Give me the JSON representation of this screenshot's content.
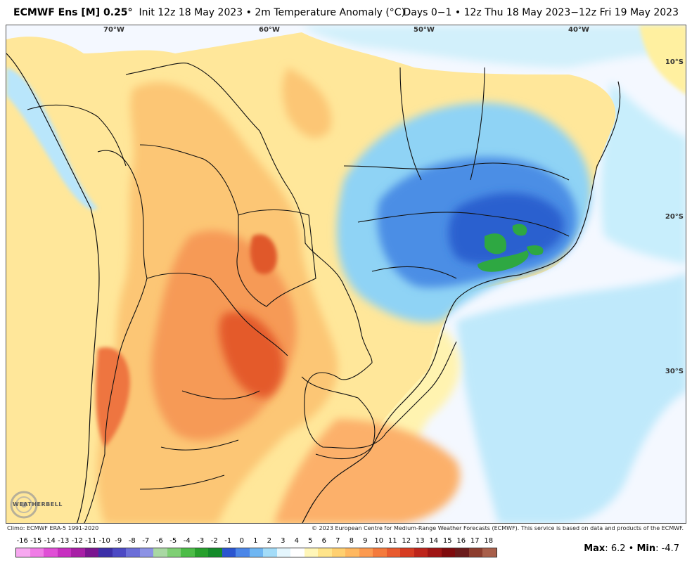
{
  "header": {
    "model": "ECMWF Ens [M] 0.25",
    "degree": "°",
    "init": "Init 12z 18 May 2023",
    "bullet": "•",
    "field": "2m Temperature Anomaly (°C)",
    "valid": "Days 0−1 • 12z Thu 18 May 2023−12z Fri 19 May 2023"
  },
  "map": {
    "lon_labels": [
      "70°W",
      "60°W",
      "50°W",
      "40°W"
    ],
    "lat_labels": [
      "10°S",
      "20°S",
      "30°S"
    ],
    "ocean_color": "#f4f8ff",
    "land_warm_colors": [
      "#fff2a8",
      "#ffd277",
      "#fbb064",
      "#f28a4e",
      "#e5582e",
      "#c93c1f"
    ],
    "cold_colors": [
      "#e8f4ff",
      "#b9e6fb",
      "#8fd3f5",
      "#5ab4ee",
      "#3c8ae0",
      "#2460d0",
      "#2ea842"
    ]
  },
  "logo": {
    "text": "WEATHERBELL"
  },
  "footer": {
    "climo": "Climo: ECMWF ERA-5 1991-2020",
    "copyright": "© 2023 European Centre for Medium-Range Weather Forecasts (ECMWF). This service is based on data and products of the ECMWF."
  },
  "colorbar": {
    "labels": [
      "-16",
      "-15",
      "-14",
      "-13",
      "-12",
      "-11",
      "-10",
      "-9",
      "-8",
      "-7",
      "-6",
      "-5",
      "-4",
      "-3",
      "-2",
      "-1",
      "0",
      "1",
      "2",
      "3",
      "4",
      "5",
      "6",
      "7",
      "8",
      "9",
      "10",
      "11",
      "12",
      "13",
      "14",
      "15",
      "16",
      "17",
      "18"
    ],
    "colors": [
      "#f7a8f0",
      "#f07ce6",
      "#e04fd6",
      "#c72fc0",
      "#a81fa6",
      "#7a1590",
      "#3c2fa8",
      "#4c49c4",
      "#6b6ed8",
      "#8c92e4",
      "#a9d8a3",
      "#7fcf74",
      "#4cbc47",
      "#27a02c",
      "#148a2a",
      "#2a55d0",
      "#4b86e8",
      "#6fb6f2",
      "#a3dcf8",
      "#e4f6fd",
      "#ffffff",
      "#fff6b8",
      "#ffe48a",
      "#ffd070",
      "#ffb860",
      "#fc9a50",
      "#f47a3c",
      "#e85a2e",
      "#d63c22",
      "#bd251b",
      "#9f1514",
      "#7f0b0d",
      "#6a1b1b",
      "#8c3d2e",
      "#a85f4a",
      "#c48a70",
      "#dcb09a",
      "#eccbbf",
      "#f6dcd8",
      "#f3b9b9",
      "#ec9a9a",
      "#e07a7a",
      "#d25a5a",
      "#c03a3a",
      "#a82020"
    ]
  },
  "stats": {
    "max_label": "Max",
    "max_value": "6.2",
    "min_label": "Min",
    "min_value": "-4.7",
    "sep": "•"
  }
}
